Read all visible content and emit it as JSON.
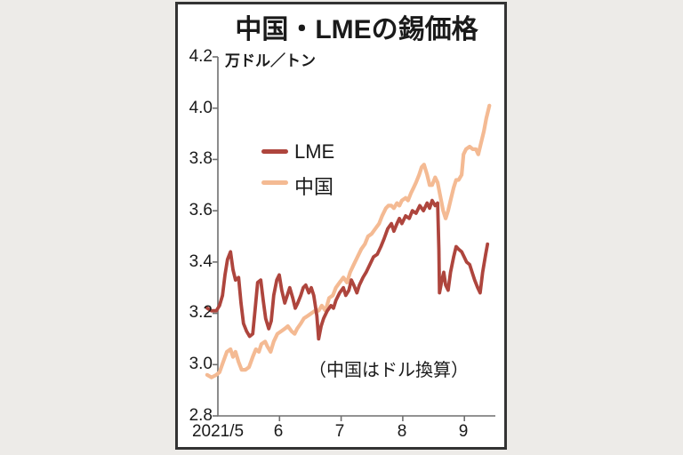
{
  "chart_data": {
    "type": "line",
    "title": "中国・LMEの錫価格",
    "y_axis_unit": "万ドル／トン",
    "note": "（中国はドル換算）",
    "ylim": [
      2.8,
      4.2
    ],
    "y_ticks": [
      "4.2",
      "4.0",
      "3.8",
      "3.6",
      "3.4",
      "3.2",
      "3.0",
      "2.8"
    ],
    "x_ticks": [
      {
        "t": 5,
        "label": "2021/5",
        "mark": false
      },
      {
        "t": 6,
        "label": "6",
        "mark": true
      },
      {
        "t": 7,
        "label": "7",
        "mark": true
      },
      {
        "t": 8,
        "label": "8",
        "mark": true
      },
      {
        "t": 9,
        "label": "9",
        "mark": true
      }
    ],
    "x_unit": "month of 2021 (decimal)",
    "legend_position": "upper-left-inside",
    "grid": false,
    "axis_color": "#6f6f6f",
    "series": [
      {
        "name": "中国",
        "color": "#f4ba93",
        "points": [
          [
            4.84,
            2.96
          ],
          [
            4.91,
            2.95
          ],
          [
            4.99,
            2.96
          ],
          [
            5.04,
            2.97
          ],
          [
            5.1,
            3.01
          ],
          [
            5.16,
            3.05
          ],
          [
            5.22,
            3.06
          ],
          [
            5.26,
            3.03
          ],
          [
            5.3,
            3.05
          ],
          [
            5.35,
            3.01
          ],
          [
            5.4,
            2.98
          ],
          [
            5.46,
            2.98
          ],
          [
            5.52,
            2.99
          ],
          [
            5.58,
            3.03
          ],
          [
            5.63,
            3.06
          ],
          [
            5.68,
            3.05
          ],
          [
            5.72,
            3.08
          ],
          [
            5.78,
            3.09
          ],
          [
            5.82,
            3.07
          ],
          [
            5.87,
            3.05
          ],
          [
            5.92,
            3.09
          ],
          [
            5.98,
            3.12
          ],
          [
            6.04,
            3.13
          ],
          [
            6.1,
            3.14
          ],
          [
            6.15,
            3.15
          ],
          [
            6.21,
            3.13
          ],
          [
            6.26,
            3.12
          ],
          [
            6.3,
            3.14
          ],
          [
            6.36,
            3.16
          ],
          [
            6.41,
            3.18
          ],
          [
            6.47,
            3.19
          ],
          [
            6.53,
            3.2
          ],
          [
            6.59,
            3.21
          ],
          [
            6.65,
            3.21
          ],
          [
            6.7,
            3.23
          ],
          [
            6.76,
            3.21
          ],
          [
            6.82,
            3.26
          ],
          [
            6.88,
            3.27
          ],
          [
            6.93,
            3.3
          ],
          [
            6.99,
            3.32
          ],
          [
            7.05,
            3.34
          ],
          [
            7.11,
            3.32
          ],
          [
            7.16,
            3.36
          ],
          [
            7.22,
            3.39
          ],
          [
            7.28,
            3.42
          ],
          [
            7.34,
            3.45
          ],
          [
            7.4,
            3.47
          ],
          [
            7.45,
            3.5
          ],
          [
            7.51,
            3.51
          ],
          [
            7.57,
            3.53
          ],
          [
            7.63,
            3.55
          ],
          [
            7.68,
            3.58
          ],
          [
            7.74,
            3.61
          ],
          [
            7.78,
            3.62
          ],
          [
            7.83,
            3.62
          ],
          [
            7.87,
            3.61
          ],
          [
            7.92,
            3.63
          ],
          [
            7.96,
            3.62
          ],
          [
            8.0,
            3.64
          ],
          [
            8.06,
            3.65
          ],
          [
            8.1,
            3.64
          ],
          [
            8.15,
            3.67
          ],
          [
            8.19,
            3.69
          ],
          [
            8.23,
            3.71
          ],
          [
            8.28,
            3.74
          ],
          [
            8.32,
            3.77
          ],
          [
            8.36,
            3.78
          ],
          [
            8.41,
            3.74
          ],
          [
            8.45,
            3.7
          ],
          [
            8.49,
            3.7
          ],
          [
            8.54,
            3.73
          ],
          [
            8.58,
            3.71
          ],
          [
            8.62,
            3.66
          ],
          [
            8.67,
            3.6
          ],
          [
            8.71,
            3.57
          ],
          [
            8.75,
            3.6
          ],
          [
            8.79,
            3.64
          ],
          [
            8.84,
            3.69
          ],
          [
            8.88,
            3.72
          ],
          [
            8.92,
            3.72
          ],
          [
            8.97,
            3.74
          ],
          [
            9.0,
            3.82
          ],
          [
            9.04,
            3.84
          ],
          [
            9.1,
            3.85
          ],
          [
            9.15,
            3.84
          ],
          [
            9.2,
            3.84
          ],
          [
            9.24,
            3.82
          ],
          [
            9.28,
            3.86
          ],
          [
            9.33,
            3.91
          ],
          [
            9.37,
            3.96
          ],
          [
            9.42,
            4.01
          ]
        ]
      },
      {
        "name": "LME",
        "color": "#ae453d",
        "points": [
          [
            4.84,
            3.22
          ],
          [
            4.91,
            3.21
          ],
          [
            4.99,
            3.21
          ],
          [
            5.04,
            3.23
          ],
          [
            5.09,
            3.27
          ],
          [
            5.13,
            3.35
          ],
          [
            5.17,
            3.41
          ],
          [
            5.22,
            3.44
          ],
          [
            5.26,
            3.37
          ],
          [
            5.3,
            3.33
          ],
          [
            5.35,
            3.34
          ],
          [
            5.39,
            3.24
          ],
          [
            5.43,
            3.16
          ],
          [
            5.48,
            3.13
          ],
          [
            5.53,
            3.11
          ],
          [
            5.58,
            3.12
          ],
          [
            5.62,
            3.22
          ],
          [
            5.66,
            3.32
          ],
          [
            5.71,
            3.33
          ],
          [
            5.75,
            3.25
          ],
          [
            5.79,
            3.18
          ],
          [
            5.84,
            3.14
          ],
          [
            5.88,
            3.17
          ],
          [
            5.92,
            3.27
          ],
          [
            5.97,
            3.33
          ],
          [
            6.01,
            3.35
          ],
          [
            6.05,
            3.29
          ],
          [
            6.1,
            3.24
          ],
          [
            6.14,
            3.27
          ],
          [
            6.18,
            3.3
          ],
          [
            6.23,
            3.26
          ],
          [
            6.27,
            3.22
          ],
          [
            6.31,
            3.24
          ],
          [
            6.36,
            3.27
          ],
          [
            6.4,
            3.3
          ],
          [
            6.44,
            3.31
          ],
          [
            6.49,
            3.28
          ],
          [
            6.53,
            3.3
          ],
          [
            6.57,
            3.27
          ],
          [
            6.62,
            3.19
          ],
          [
            6.65,
            3.1
          ],
          [
            6.69,
            3.15
          ],
          [
            6.73,
            3.18
          ],
          [
            6.79,
            3.21
          ],
          [
            6.85,
            3.23
          ],
          [
            6.89,
            3.22
          ],
          [
            6.93,
            3.25
          ],
          [
            6.99,
            3.28
          ],
          [
            7.05,
            3.3
          ],
          [
            7.09,
            3.27
          ],
          [
            7.14,
            3.29
          ],
          [
            7.18,
            3.33
          ],
          [
            7.22,
            3.31
          ],
          [
            7.27,
            3.28
          ],
          [
            7.31,
            3.31
          ],
          [
            7.37,
            3.34
          ],
          [
            7.42,
            3.36
          ],
          [
            7.48,
            3.39
          ],
          [
            7.54,
            3.42
          ],
          [
            7.6,
            3.43
          ],
          [
            7.66,
            3.46
          ],
          [
            7.71,
            3.49
          ],
          [
            7.77,
            3.53
          ],
          [
            7.83,
            3.55
          ],
          [
            7.87,
            3.52
          ],
          [
            7.92,
            3.55
          ],
          [
            7.96,
            3.57
          ],
          [
            8.0,
            3.55
          ],
          [
            8.06,
            3.58
          ],
          [
            8.12,
            3.57
          ],
          [
            8.17,
            3.6
          ],
          [
            8.23,
            3.59
          ],
          [
            8.29,
            3.62
          ],
          [
            8.35,
            3.6
          ],
          [
            8.41,
            3.63
          ],
          [
            8.45,
            3.61
          ],
          [
            8.49,
            3.64
          ],
          [
            8.54,
            3.62
          ],
          [
            8.58,
            3.63
          ],
          [
            8.6,
            3.45
          ],
          [
            8.61,
            3.28
          ],
          [
            8.65,
            3.33
          ],
          [
            8.68,
            3.36
          ],
          [
            8.71,
            3.31
          ],
          [
            8.75,
            3.29
          ],
          [
            8.79,
            3.36
          ],
          [
            8.84,
            3.42
          ],
          [
            8.88,
            3.46
          ],
          [
            8.92,
            3.45
          ],
          [
            8.97,
            3.44
          ],
          [
            9.01,
            3.42
          ],
          [
            9.05,
            3.4
          ],
          [
            9.1,
            3.39
          ],
          [
            9.14,
            3.36
          ],
          [
            9.18,
            3.33
          ],
          [
            9.23,
            3.3
          ],
          [
            9.27,
            3.28
          ],
          [
            9.31,
            3.36
          ],
          [
            9.36,
            3.43
          ],
          [
            9.39,
            3.47
          ]
        ]
      }
    ]
  },
  "legend": {
    "lme_label": "LME",
    "china_label": "中国"
  }
}
